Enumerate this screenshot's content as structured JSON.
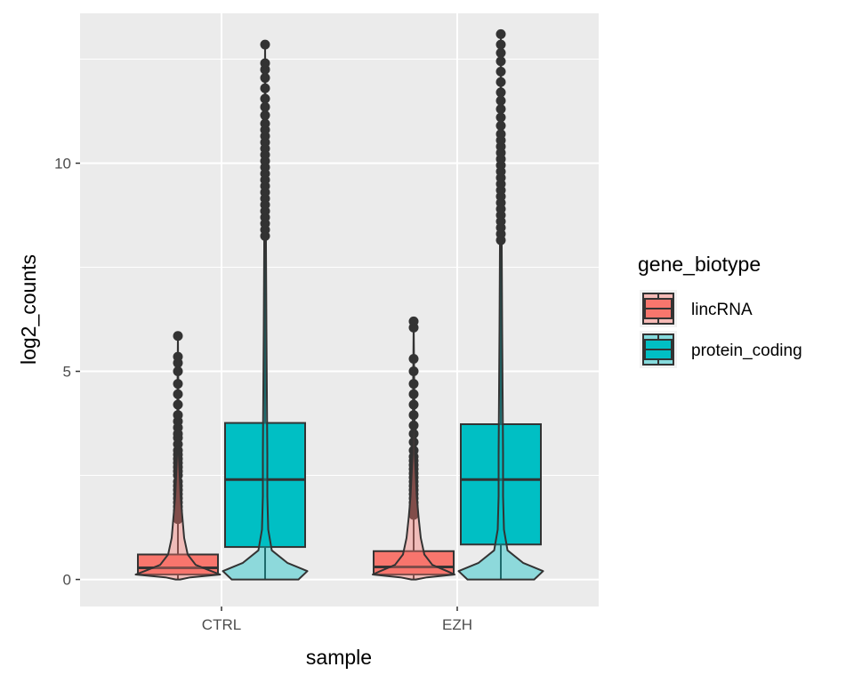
{
  "chart_data": {
    "type": "boxplot+violin",
    "xlabel": "sample",
    "ylabel": "log2_counts",
    "categories": [
      "CTRL",
      "EZH"
    ],
    "ylim": [
      -0.65,
      13.6
    ],
    "y_ticks": [
      0,
      5,
      10
    ],
    "grid": true,
    "legend": {
      "title": "gene_biotype",
      "position": "right",
      "entries": [
        "lincRNA",
        "protein_coding"
      ]
    },
    "colors": {
      "lincRNA": "#F8766D",
      "protein_coding": "#00BFC4",
      "panel_bg": "#EBEBEB",
      "grid": "#FFFFFF",
      "outline": "#333333"
    },
    "series": [
      {
        "name": "lincRNA",
        "color": "#F8766D",
        "groups": [
          {
            "category": "CTRL",
            "box": {
              "q1": 0.12,
              "median": 0.28,
              "q3": 0.6,
              "whisker_low": 0.0,
              "whisker_high": 1.4
            },
            "violin": {
              "max": 5.9,
              "density": [
                [
                  0,
                  0.05
                ],
                [
                  0.05,
                  0.28
                ],
                [
                  0.12,
                  0.95
                ],
                [
                  0.2,
                  0.75
                ],
                [
                  0.35,
                  0.4
                ],
                [
                  0.6,
                  0.22
                ],
                [
                  1.0,
                  0.14
                ],
                [
                  1.5,
                  0.1
                ],
                [
                  2.0,
                  0.06
                ],
                [
                  3.0,
                  0.02
                ],
                [
                  5.9,
                  0.0
                ]
              ]
            },
            "outliers": [
              1.45,
              1.55,
              1.65,
              1.75,
              1.85,
              1.95,
              2.05,
              2.15,
              2.25,
              2.35,
              2.5,
              2.6,
              2.7,
              2.8,
              2.9,
              3.0,
              3.1,
              3.25,
              3.4,
              3.5,
              3.65,
              3.8,
              3.95,
              4.2,
              4.45,
              4.7,
              5.0,
              5.2,
              5.35,
              5.85
            ]
          },
          {
            "category": "EZH",
            "box": {
              "q1": 0.12,
              "median": 0.3,
              "q3": 0.68,
              "whisker_low": 0.0,
              "whisker_high": 1.5
            },
            "violin": {
              "max": 6.2,
              "density": [
                [
                  0,
                  0.05
                ],
                [
                  0.05,
                  0.3
                ],
                [
                  0.12,
                  0.92
                ],
                [
                  0.2,
                  0.75
                ],
                [
                  0.35,
                  0.42
                ],
                [
                  0.6,
                  0.24
                ],
                [
                  1.0,
                  0.16
                ],
                [
                  1.5,
                  0.11
                ],
                [
                  2.0,
                  0.07
                ],
                [
                  3.0,
                  0.025
                ],
                [
                  6.2,
                  0.0
                ]
              ]
            },
            "outliers": [
              1.55,
              1.65,
              1.75,
              1.85,
              1.95,
              2.05,
              2.15,
              2.25,
              2.35,
              2.45,
              2.55,
              2.65,
              2.75,
              2.85,
              2.95,
              3.1,
              3.3,
              3.5,
              3.7,
              3.95,
              4.2,
              4.45,
              4.7,
              5.0,
              5.3,
              6.05,
              6.2
            ]
          }
        ]
      },
      {
        "name": "protein_coding",
        "color": "#00BFC4",
        "groups": [
          {
            "category": "CTRL",
            "box": {
              "q1": 0.78,
              "median": 2.4,
              "q3": 3.76,
              "whisker_low": 0.0,
              "whisker_high": 8.2
            },
            "violin": {
              "max": 12.9,
              "density": [
                [
                  0,
                  0.75
                ],
                [
                  0.2,
                  0.95
                ],
                [
                  0.4,
                  0.5
                ],
                [
                  0.7,
                  0.15
                ],
                [
                  1.2,
                  0.07
                ],
                [
                  2.0,
                  0.05
                ],
                [
                  3.0,
                  0.05
                ],
                [
                  4.5,
                  0.04
                ],
                [
                  6.0,
                  0.03
                ],
                [
                  8.0,
                  0.02
                ],
                [
                  10.0,
                  0.015
                ],
                [
                  12.9,
                  0.0
                ]
              ]
            },
            "outliers": [
              8.25,
              8.4,
              8.55,
              8.7,
              8.85,
              9.0,
              9.15,
              9.3,
              9.45,
              9.6,
              9.75,
              9.9,
              10.05,
              10.2,
              10.35,
              10.5,
              10.65,
              10.8,
              10.95,
              11.15,
              11.35,
              11.55,
              11.8,
              12.05,
              12.25,
              12.4,
              12.85
            ]
          },
          {
            "category": "EZH",
            "box": {
              "q1": 0.84,
              "median": 2.4,
              "q3": 3.73,
              "whisker_low": 0.0,
              "whisker_high": 8.1
            },
            "violin": {
              "max": 13.1,
              "density": [
                [
                  0,
                  0.75
                ],
                [
                  0.2,
                  0.95
                ],
                [
                  0.4,
                  0.5
                ],
                [
                  0.7,
                  0.15
                ],
                [
                  1.2,
                  0.07
                ],
                [
                  2.0,
                  0.05
                ],
                [
                  3.0,
                  0.05
                ],
                [
                  4.5,
                  0.04
                ],
                [
                  6.0,
                  0.03
                ],
                [
                  8.0,
                  0.02
                ],
                [
                  10.0,
                  0.015
                ],
                [
                  13.1,
                  0.0
                ]
              ]
            },
            "outliers": [
              8.15,
              8.3,
              8.45,
              8.6,
              8.75,
              8.9,
              9.05,
              9.2,
              9.35,
              9.5,
              9.65,
              9.8,
              9.95,
              10.1,
              10.25,
              10.4,
              10.55,
              10.7,
              10.9,
              11.1,
              11.3,
              11.5,
              11.7,
              11.95,
              12.2,
              12.45,
              12.65,
              12.85,
              13.1
            ]
          }
        ]
      }
    ]
  }
}
